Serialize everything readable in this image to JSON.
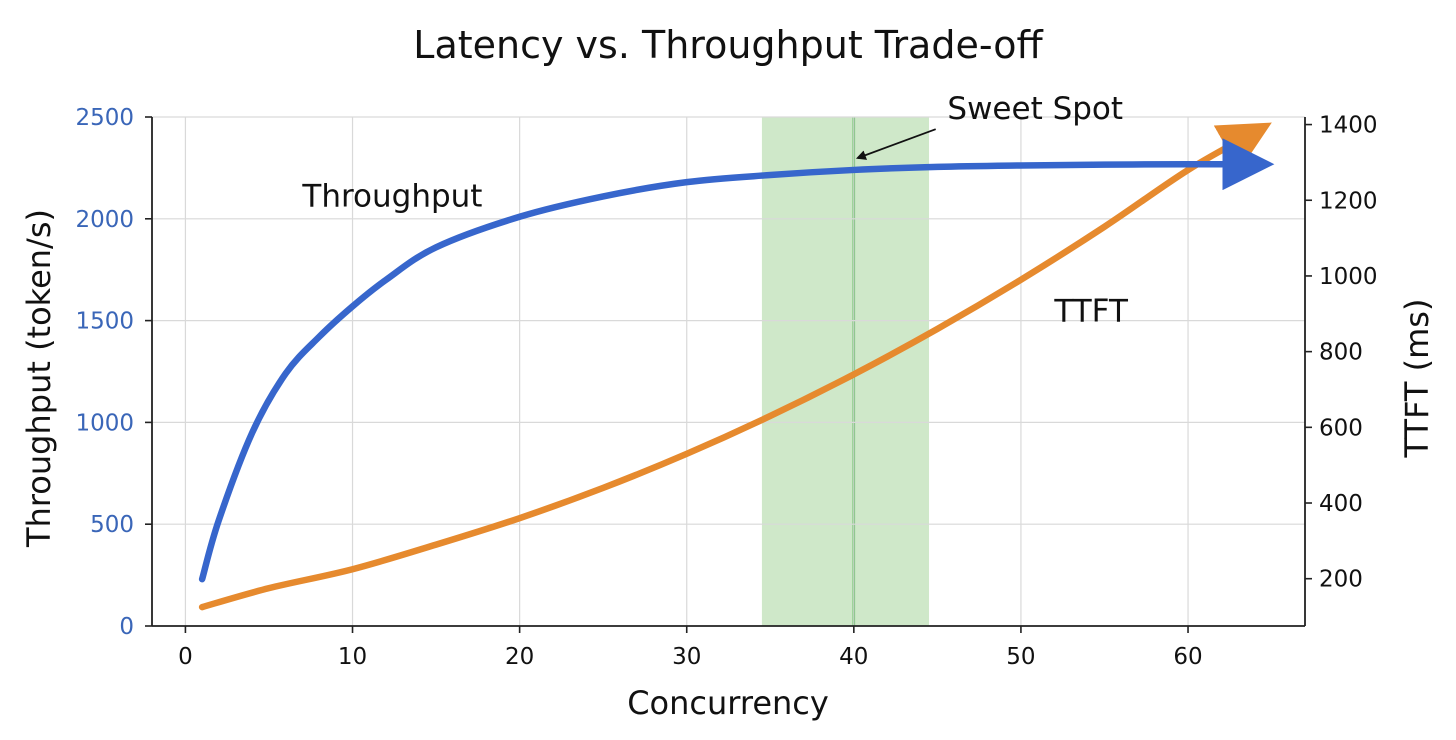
{
  "chart_data": {
    "type": "line",
    "title": "Latency vs. Throughput Trade-off",
    "xlabel": "Concurrency",
    "ylabel_left": "Throughput (token/s)",
    "ylabel_right": "TTFT (ms)",
    "xlim": [
      -2,
      67
    ],
    "ylim_left": [
      0,
      2500
    ],
    "ylim_right": [
      75,
      1420
    ],
    "x_ticks": [
      "0",
      "10",
      "20",
      "30",
      "40",
      "50",
      "60"
    ],
    "y_left_ticks": [
      "0",
      "500",
      "1000",
      "1500",
      "2000",
      "2500"
    ],
    "y_right_ticks": [
      "200",
      "400",
      "600",
      "800",
      "1000",
      "1200",
      "1400"
    ],
    "grid": true,
    "series": [
      {
        "name": "Throughput",
        "axis": "left",
        "color": "#3766cc",
        "x": [
          1,
          2,
          4,
          6,
          8,
          10,
          12,
          15,
          20,
          25,
          30,
          35,
          40,
          45,
          50,
          55,
          60,
          64
        ],
        "y": [
          230,
          520,
          950,
          1240,
          1420,
          1570,
          1700,
          1860,
          2010,
          2110,
          2180,
          2215,
          2240,
          2255,
          2262,
          2266,
          2268,
          2268
        ]
      },
      {
        "name": "TTFT",
        "axis": "right",
        "color": "#e68a2e",
        "x": [
          1,
          5,
          10,
          15,
          20,
          25,
          30,
          35,
          40,
          45,
          50,
          55,
          60,
          64
        ],
        "y": [
          125,
          175,
          225,
          290,
          360,
          440,
          530,
          630,
          740,
          860,
          990,
          1130,
          1280,
          1380
        ]
      }
    ],
    "highlight": {
      "x_start": 34.5,
      "x_end": 44.5,
      "center": 40,
      "color": "#cfe8c9",
      "line_color": "#5cb85c"
    },
    "annotations": [
      {
        "text": "Sweet Spot",
        "target_x": 40,
        "target_y_left": 2230
      }
    ]
  }
}
